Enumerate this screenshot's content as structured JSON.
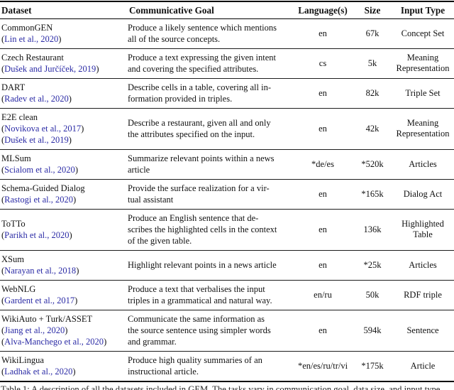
{
  "colors": {
    "link_blue": "#2a2aa5",
    "rule_black": "#000000",
    "background": "#ffffff",
    "text": "#111111"
  },
  "table": {
    "headers": [
      "Dataset",
      "Communicative Goal",
      "Language(s)",
      "Size",
      "Input Type"
    ],
    "rows": [
      {
        "name": "CommonGEN",
        "citations": [
          "Lin et al., 2020"
        ],
        "goal": "Produce a likely sentence which mentions\nall of the source concepts.",
        "languages": "en",
        "size": "67k",
        "input_type": "Concept Set"
      },
      {
        "name": "Czech Restaurant",
        "citations": [
          "Dušek and Jurčíček, 2019"
        ],
        "goal": "Produce a text expressing the given intent\nand covering the specified attributes.",
        "languages": "cs",
        "size": "5k",
        "input_type": "Meaning Representation"
      },
      {
        "name": "DART",
        "citations": [
          "Radev et al., 2020"
        ],
        "goal": "Describe cells in a table, covering all in-\nformation provided in triples.",
        "languages": "en",
        "size": "82k",
        "input_type": "Triple Set"
      },
      {
        "name": "E2E clean",
        "citations": [
          "Novikova et al., 2017",
          "Dušek et al., 2019"
        ],
        "goal": "Describe a restaurant, given all and only\nthe attributes specified on the input.",
        "languages": "en",
        "size": "42k",
        "input_type": "Meaning Representation"
      },
      {
        "name": "MLSum",
        "citations": [
          "Scialom et al., 2020"
        ],
        "goal": "Summarize relevant points within a news\narticle",
        "languages": "*de/es",
        "size": "*520k",
        "input_type": "Articles"
      },
      {
        "name": "Schema-Guided Dialog",
        "citations": [
          "Rastogi et al., 2020"
        ],
        "goal": "Provide the surface realization for a vir-\ntual assistant",
        "languages": "en",
        "size": "*165k",
        "input_type": "Dialog Act"
      },
      {
        "name": "ToTTo",
        "citations": [
          "Parikh et al., 2020"
        ],
        "goal": "Produce an English sentence that de-\nscribes the highlighted cells in the context\nof the given table.",
        "languages": "en",
        "size": "136k",
        "input_type": "Highlighted Table"
      },
      {
        "name": "XSum",
        "citations": [
          "Narayan et al., 2018"
        ],
        "goal": "Highlight relevant points in a news article",
        "languages": "en",
        "size": "*25k",
        "input_type": "Articles"
      },
      {
        "name": "WebNLG",
        "citations": [
          "Gardent et al., 2017"
        ],
        "goal": "Produce a text that verbalises the input\ntriples in a grammatical and natural way.",
        "languages": "en/ru",
        "size": "50k",
        "input_type": "RDF triple"
      },
      {
        "name": "WikiAuto + Turk/ASSET",
        "citations": [
          "Jiang et al., 2020",
          "Alva-Manchego et al., 2020"
        ],
        "goal": "Communicate the same information as\nthe source sentence using simpler words\nand grammar.",
        "languages": "en",
        "size": "594k",
        "input_type": "Sentence"
      },
      {
        "name": "WikiLingua",
        "citations": [
          "Ladhak et al., 2020"
        ],
        "goal": "Produce high quality summaries of an\ninstructional article.",
        "languages": "*en/es/ru/tr/vi",
        "size": "*175k",
        "input_type": "Article"
      }
    ]
  },
  "caption": "Table 1: A description of all the datasets included in GEM. The tasks vary in communication goal, data size, and input type."
}
